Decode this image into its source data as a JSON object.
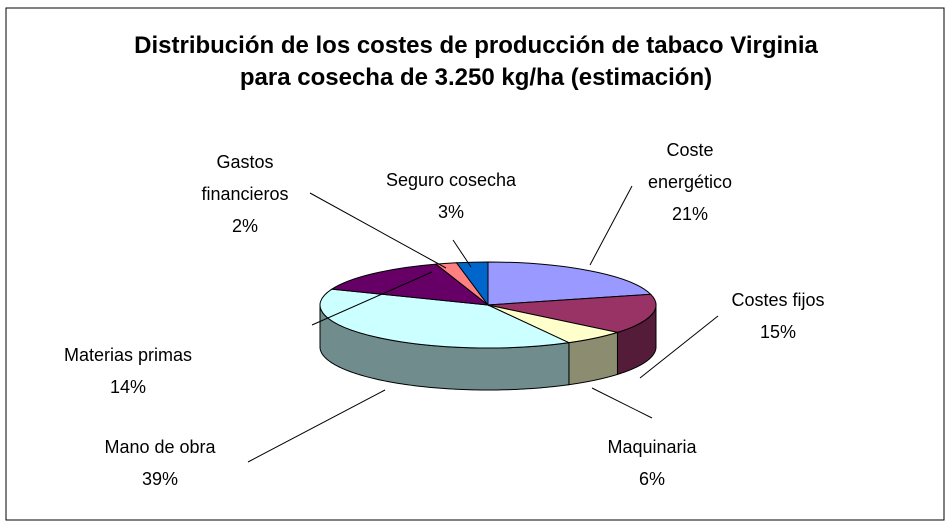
{
  "chart_data": {
    "type": "pie",
    "title": "Distribución de los costes de producción de tabaco Virginia para cosecha de 3.250 kg/ha (estimación)",
    "categories": [
      "Coste energético",
      "Costes fijos",
      "Maquinaria",
      "Mano de obra",
      "Materias primas",
      "Gastos financieros",
      "Seguro cosecha"
    ],
    "values": [
      21,
      15,
      6,
      39,
      14,
      2,
      3
    ],
    "value_labels": [
      "21%",
      "15%",
      "6%",
      "39%",
      "14%",
      "2%",
      "3%"
    ],
    "colors": [
      "#9999ff",
      "#993366",
      "#ffffcc",
      "#ccffff",
      "#660066",
      "#ff8080",
      "#0066cc"
    ]
  }
}
